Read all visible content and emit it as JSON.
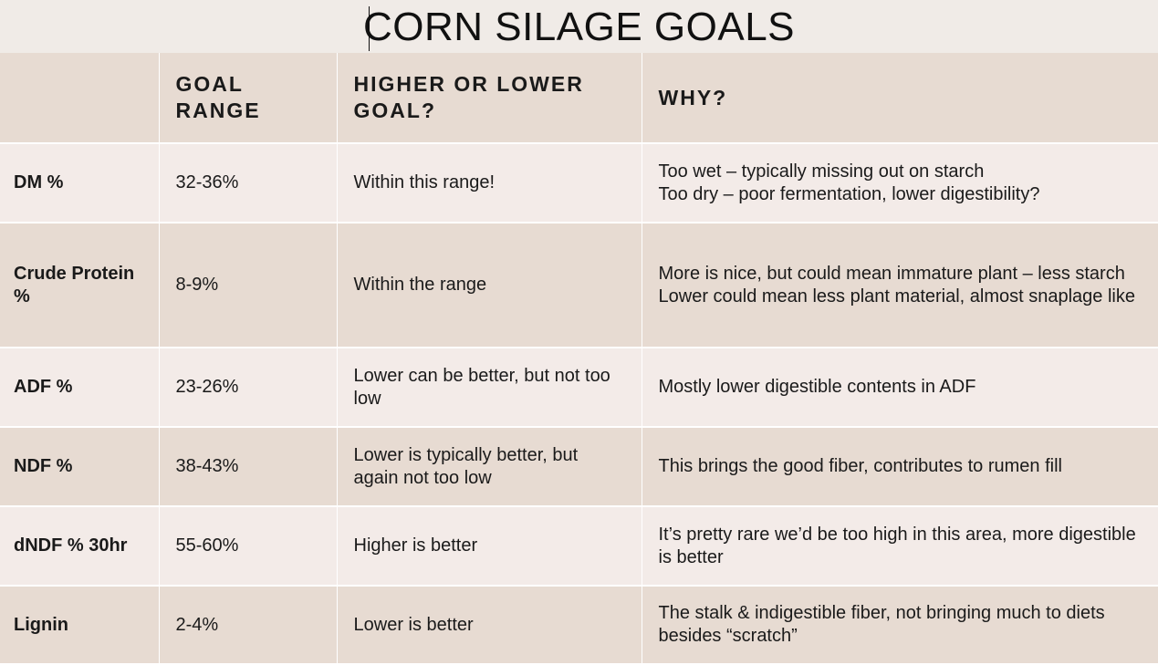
{
  "title": "CORN SILAGE GOALS",
  "table": {
    "headers": [
      "",
      "GOAL RANGE",
      "HIGHER OR LOWER GOAL?",
      "WHY?"
    ],
    "rows": [
      {
        "parameter": "DM %",
        "goal_range": "32-36%",
        "direction": "Within this range!",
        "why": [
          "Too wet – typically missing out on starch",
          "Too dry – poor fermentation, lower digestibility?"
        ]
      },
      {
        "parameter": "Crude Protein %",
        "goal_range": "8-9%",
        "direction": "Within the range",
        "why": [
          "More is nice, but could mean immature plant – less starch",
          "Lower could mean less plant material, almost snaplage like"
        ]
      },
      {
        "parameter": "ADF %",
        "goal_range": "23-26%",
        "direction": "Lower can be better, but not too low",
        "why": [
          "Mostly lower digestible contents in ADF"
        ]
      },
      {
        "parameter": "NDF %",
        "goal_range": "38-43%",
        "direction": "Lower is typically better, but again not too low",
        "why": [
          "This brings the good fiber, contributes to rumen fill"
        ]
      },
      {
        "parameter": "dNDF % 30hr",
        "goal_range": "55-60%",
        "direction": "Higher is better",
        "why": [
          "It’s pretty rare we’d be too high in this area, more digestible is better"
        ]
      },
      {
        "parameter": "Lignin",
        "goal_range": "2-4%",
        "direction": "Lower is better",
        "why": [
          "The stalk & indigestible fiber, not bringing much to diets besides “scratch”"
        ]
      }
    ]
  },
  "colors": {
    "background": "#f0ebe7",
    "row_dark": "#e7dbd2",
    "row_light": "#f3ebe8",
    "grid": "#ffffff"
  }
}
